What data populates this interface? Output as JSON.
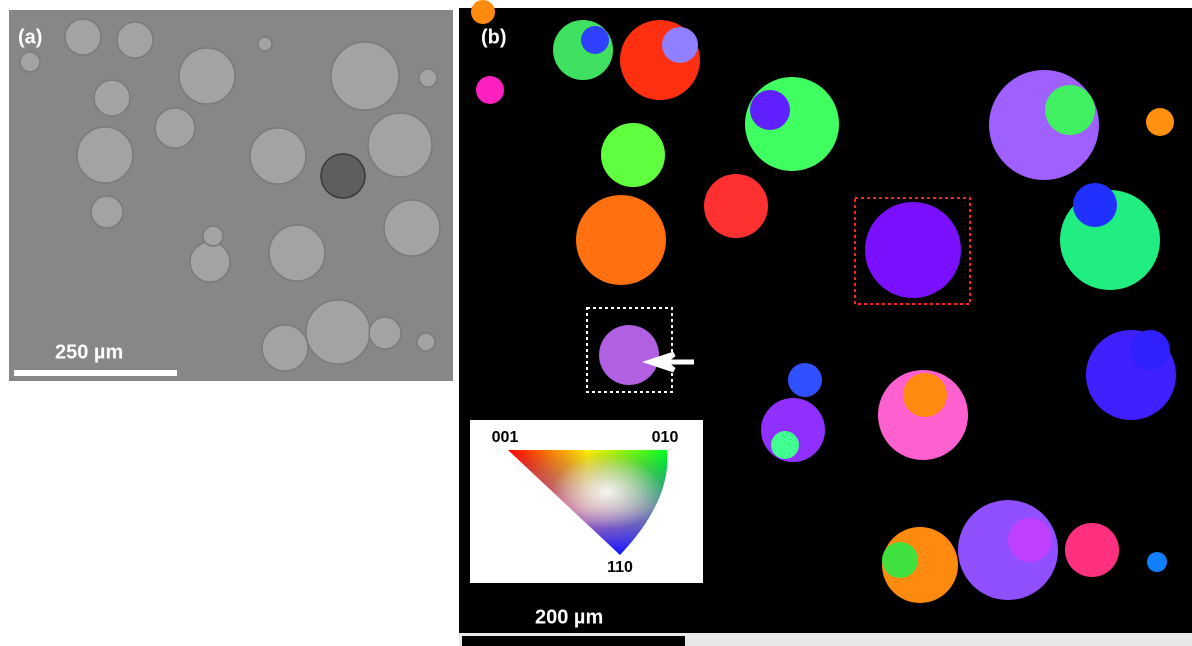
{
  "panel_a": {
    "label": "(a)",
    "scale_bar": "250 µm"
  },
  "panel_b": {
    "label": "(b)",
    "scale_bar": "200 µm",
    "legend": {
      "corner_001": "001",
      "corner_010": "010",
      "corner_110": "110"
    }
  }
}
